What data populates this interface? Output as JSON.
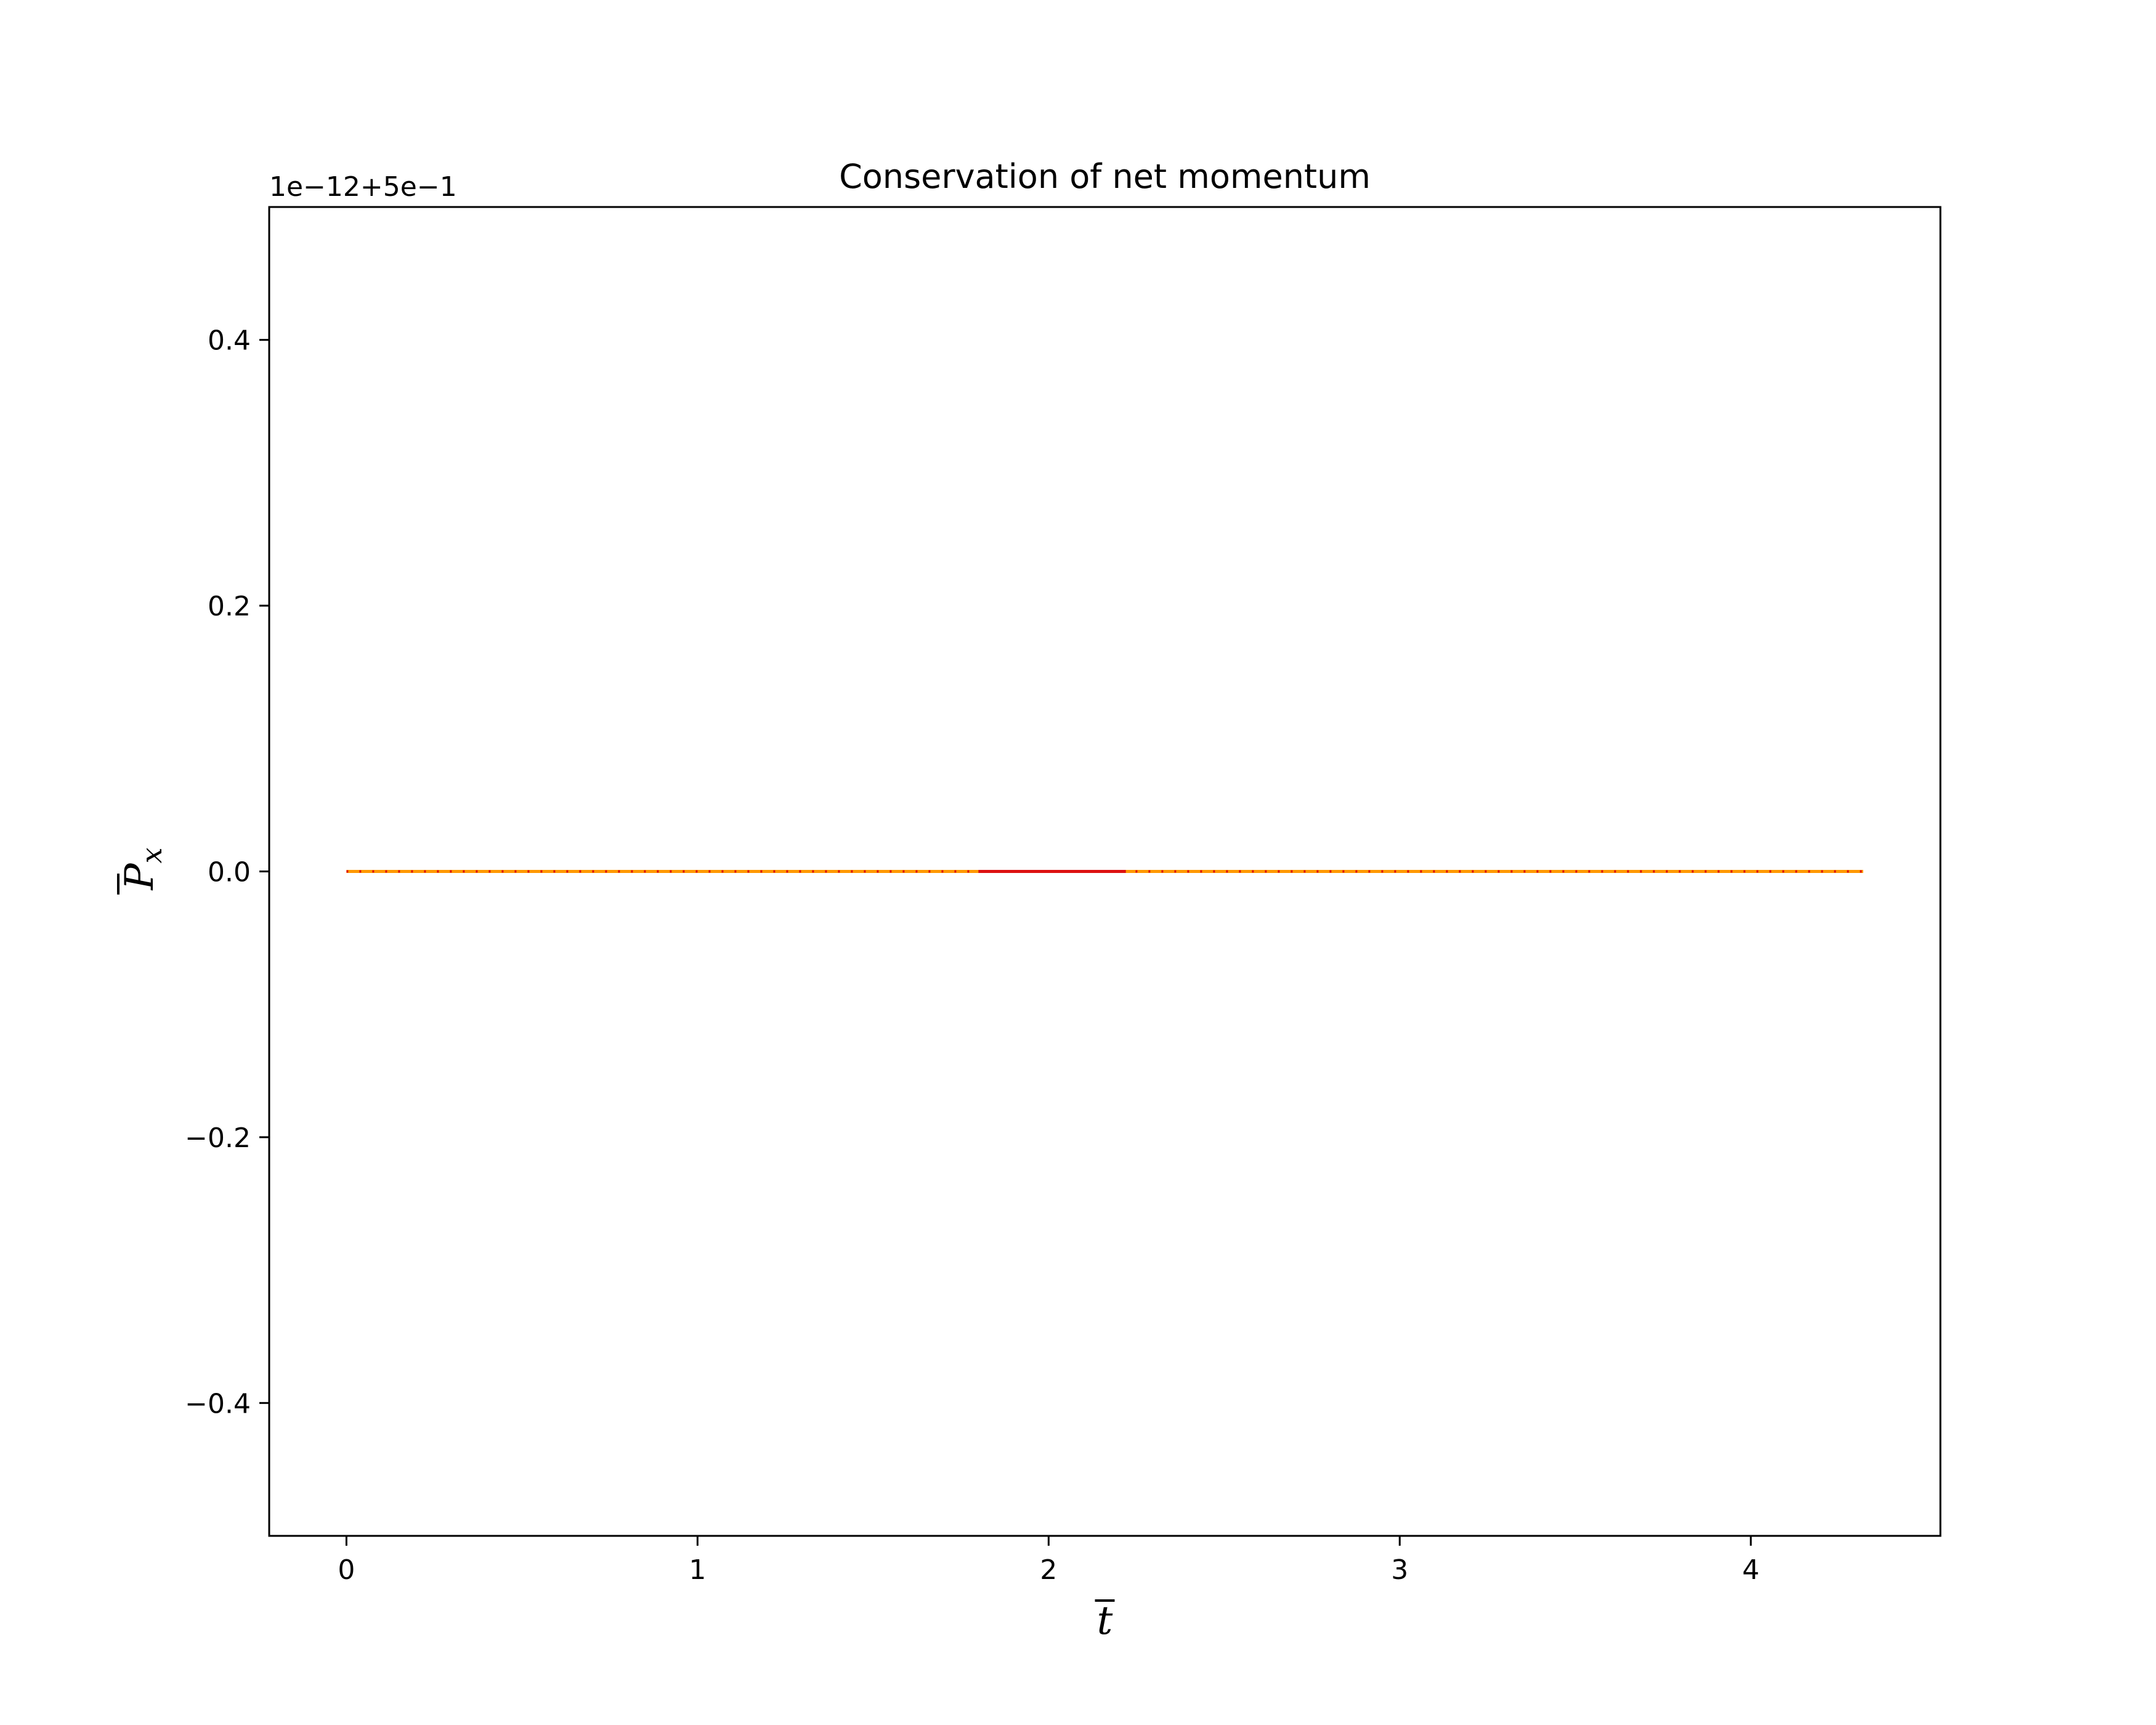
{
  "chart_data": {
    "type": "line",
    "title": "Conservation of net momentum",
    "xlabel": "t",
    "ylabel": "P",
    "ylabel_sub": "x",
    "offset_text": "1e−12+5e−1",
    "xlim": [
      -0.22,
      4.54
    ],
    "ylim": [
      -0.5,
      0.5
    ],
    "xticks": [
      0,
      1,
      2,
      3,
      4
    ],
    "xtick_labels": [
      "0",
      "1",
      "2",
      "3",
      "4"
    ],
    "yticks": [
      -0.4,
      -0.2,
      0.0,
      0.2,
      0.4
    ],
    "ytick_labels": [
      "−0.4",
      "−0.2",
      "0.0",
      "0.2",
      "0.4"
    ],
    "grid": false,
    "series": [
      {
        "color": "#ff9900",
        "style": "solid",
        "x": [
          0,
          4.32
        ],
        "y": [
          0.0,
          0.0
        ]
      },
      {
        "color": "#dd1111",
        "style": "dotted",
        "x": [
          0,
          4.32
        ],
        "y": [
          0.0,
          0.0
        ]
      },
      {
        "color": "#dd1111",
        "style": "solid",
        "x": [
          1.8,
          2.22
        ],
        "y": [
          0.0,
          0.0
        ]
      }
    ]
  }
}
